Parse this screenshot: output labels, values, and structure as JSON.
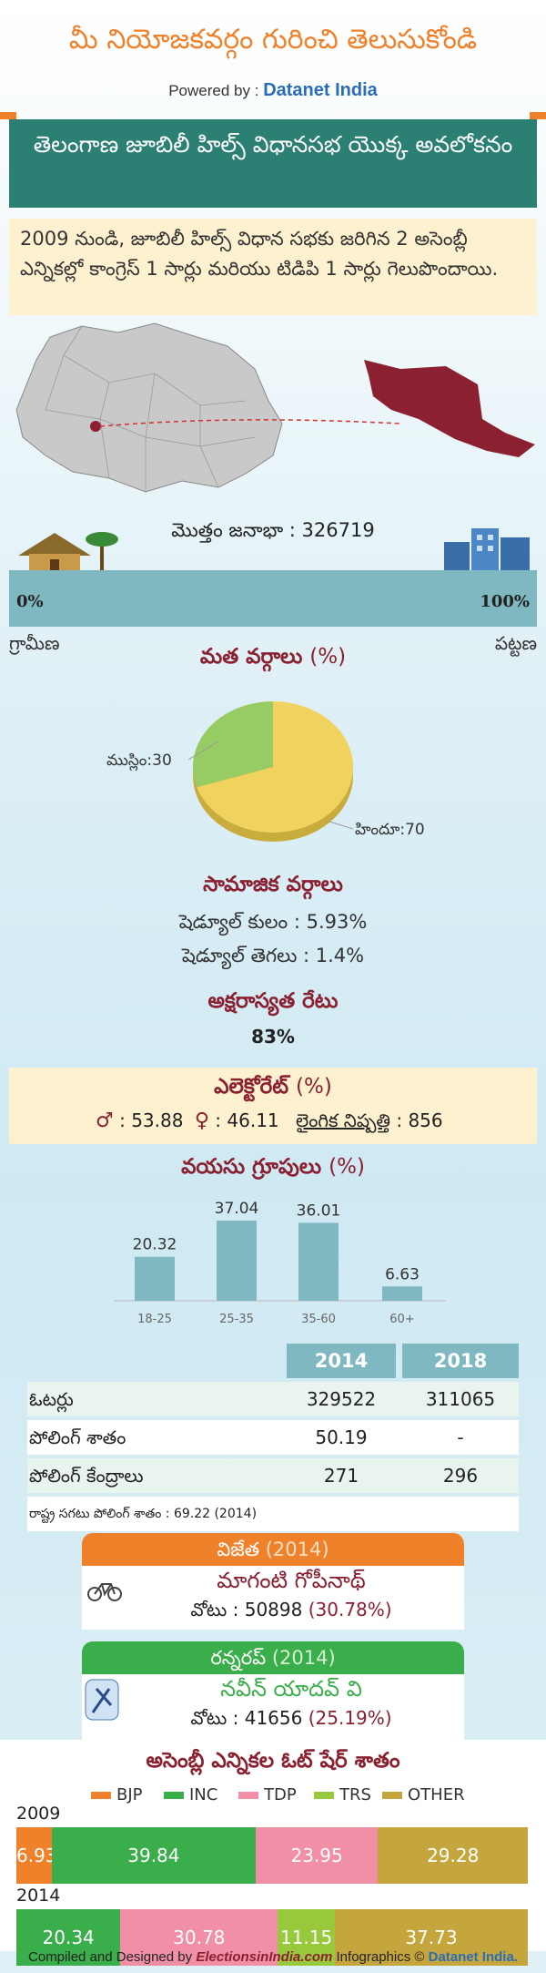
{
  "header": {
    "title": "మీ నియోజకవర్గం గురించి తెలుసుకోండి",
    "powered_by_label": "Powered by :",
    "powered_by_brand": "Datanet India"
  },
  "overview": {
    "title": "తెలంగాణ జూబిలీ హిల్స్ విధానసభ యొక్క అవలోకనం",
    "summary": "2009 నుండి, జూబిలీ హిల్స్ విధాన సభకు జరిగిన 2 అసెంబ్లీ ఎన్నికల్లో కాంగ్రెస్ 1 సార్లు మరియు టిడిపి 1 సార్లు గెలుపొందాయి."
  },
  "population": {
    "label": "మొత్తం జనాభా : 326719",
    "left_pct": "0%",
    "right_pct": "100%",
    "rural_label": "గ్రామీణ",
    "urban_label": "పట్టణ",
    "urban_share": 1.0
  },
  "colors": {
    "orange": "#f0812b",
    "teal": "#2b7f73",
    "bar_blue": "#7fb8c1",
    "maroon": "#8a2030",
    "green": "#3aae4a"
  },
  "religion": {
    "title": "మత వర్గాలు",
    "unit": "(%)"
  },
  "social": {
    "title": "సామాజిక వర్గాలు",
    "sc": "షెడ్యూల్ కులం :  5.93%",
    "st": "షెడ్యూల్ తెగలు :  1.4%"
  },
  "literacy": {
    "title": "అక్షరాస్యత రేటు",
    "value": "83%"
  },
  "electorate": {
    "title": "ఎలెక్టోరేట్",
    "unit": "(%)",
    "male": ": 53.88",
    "female": ": 46.11",
    "sex_ratio_label": "లైంగిక నిష్పత్తి",
    "sex_ratio_value": ": 856"
  },
  "age": {
    "title": "వయసు గ్రూపులు",
    "unit": "(%)"
  },
  "table": {
    "headers": [
      "",
      "2014",
      "2018"
    ],
    "rows": [
      [
        "ఓటర్లు",
        "329522",
        "311065"
      ],
      [
        "పోలింగ్ శాతం",
        "50.19",
        "-"
      ],
      [
        "పోలింగ్ కేంద్రాలు",
        "271",
        "296"
      ]
    ],
    "note": "రాష్ట్ర సగటు పోలింగ్ శాతం : 69.22 (2014)"
  },
  "winner": {
    "title": "విజేత",
    "year": "(2014)",
    "name": "మాగంటి గోపీనాథ్",
    "votes_label": "వోటు : 50898",
    "votes_pct": "(30.78%)"
  },
  "runnerup": {
    "title": "రన్నరప్",
    "year": "(2014)",
    "name": "నవీన్ యాదవ్ వి",
    "votes_label": "వోటు : 41656",
    "votes_pct": "(25.19%)"
  },
  "vote_share": {
    "title": "అసెంబ్లీ ఎన్నికల ఓట్ షేర్ శాతం"
  },
  "footer": {
    "compiled": "Compiled and Designed by",
    "site": "ElectionsinIndia.com",
    "infographics": "Infographics ©",
    "brand": "Datanet India."
  },
  "chart_data": [
    {
      "type": "pie",
      "title": "మత వర్గాలు",
      "categories": [
        "హిందూ",
        "ముస్లిం"
      ],
      "values": [
        70,
        30
      ],
      "labels": [
        "హిందూ:70",
        "ముస్లిం:30"
      ],
      "colors": [
        "#f0d25e",
        "#96cc63"
      ]
    },
    {
      "type": "bar",
      "title": "వయసు గ్రూపులు",
      "categories": [
        "18-25",
        "25-35",
        "35-60",
        "60+"
      ],
      "values": [
        20.32,
        37.04,
        36.01,
        6.63
      ],
      "ylim": [
        0,
        40
      ]
    },
    {
      "type": "bar",
      "title": "అసెంబ్లీ ఎన్నికల ఓట్ షేర్ శాతం",
      "stacked": true,
      "categories": [
        "2009",
        "2014"
      ],
      "series": [
        {
          "name": "BJP",
          "color": "#f0812b",
          "values": [
            6.93,
            0
          ]
        },
        {
          "name": "INC",
          "color": "#3aae4a",
          "values": [
            39.84,
            20.34
          ]
        },
        {
          "name": "TDP",
          "color": "#f08fa6",
          "values": [
            23.95,
            30.78
          ]
        },
        {
          "name": "TRS",
          "color": "#98c93c",
          "values": [
            0,
            11.15
          ]
        },
        {
          "name": "OTHER",
          "color": "#c5a63d",
          "values": [
            29.28,
            37.73
          ]
        }
      ]
    }
  ]
}
